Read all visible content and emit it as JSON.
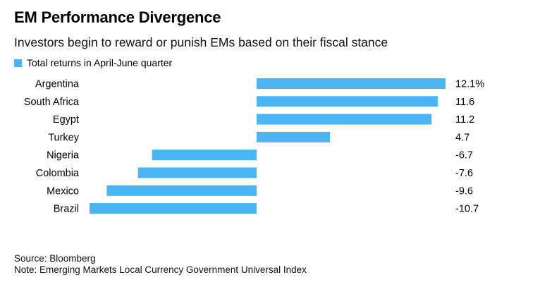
{
  "header": {
    "title": "EM Performance Divergence",
    "subtitle": "Investors begin to reward or punish EMs based on their fiscal stance"
  },
  "legend": {
    "label": "Total returns in April-June quarter",
    "color": "#4ab5f5"
  },
  "chart_data": {
    "type": "bar",
    "orientation": "horizontal",
    "categories": [
      "Argentina",
      "South Africa",
      "Egypt",
      "Turkey",
      "Nigeria",
      "Colombia",
      "Mexico",
      "Brazil"
    ],
    "values": [
      12.1,
      11.6,
      11.2,
      4.7,
      -6.7,
      -7.6,
      -9.6,
      -10.7
    ],
    "value_labels": [
      "12.1%",
      "11.6",
      "11.2",
      "4.7",
      "-6.7",
      "-7.6",
      "-9.6",
      "-10.7"
    ],
    "series": [
      {
        "name": "Total returns in April-June quarter",
        "values": [
          12.1,
          11.6,
          11.2,
          4.7,
          -6.7,
          -7.6,
          -9.6,
          -10.7
        ]
      }
    ],
    "title": "EM Performance Divergence",
    "subtitle": "Investors begin to reward or punish EMs based on their fiscal stance",
    "xlabel": "",
    "ylabel": "",
    "xlim": [
      -10.7,
      12.1
    ],
    "grid": false,
    "legend_placement": "top-left",
    "bar_color": "#4ab5f5"
  },
  "footer": {
    "source": "Source: Bloomberg",
    "note": "Note: Emerging Markets Local Currency Government Universal Index"
  }
}
